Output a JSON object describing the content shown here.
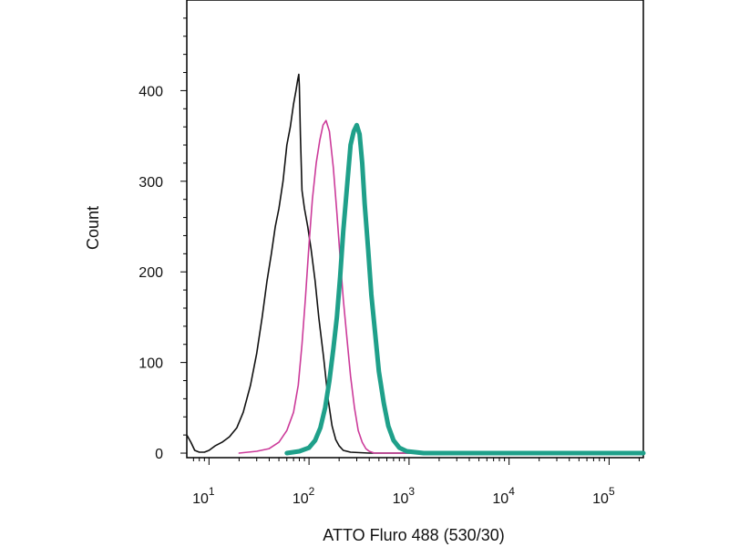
{
  "chart_data": {
    "type": "line",
    "xlabel": "ATTO Fluro 488 (530/30)",
    "ylabel": "Count",
    "x_scale": "log",
    "xlim": [
      6,
      220000
    ],
    "ylim": [
      -5,
      500
    ],
    "y_ticks": [
      0,
      100,
      200,
      300,
      400
    ],
    "y_tick_labels": [
      "0",
      "100",
      "200",
      "300",
      "400"
    ],
    "x_ticks": [
      {
        "value": 10,
        "base": "10",
        "exp": "1"
      },
      {
        "value": 100,
        "base": "10",
        "exp": "2"
      },
      {
        "value": 1000,
        "base": "10",
        "exp": "3"
      },
      {
        "value": 10000,
        "base": "10",
        "exp": "4"
      },
      {
        "value": 100000,
        "base": "10",
        "exp": "5"
      }
    ],
    "grid": false,
    "series": [
      {
        "color": "#111111",
        "x": [
          6,
          6.6,
          7.2,
          8,
          9,
          10,
          11.5,
          13.5,
          16,
          19,
          22,
          26,
          30,
          34,
          38,
          42,
          46,
          50,
          55,
          60,
          65,
          70,
          74,
          77,
          79,
          80,
          82,
          85,
          90,
          97,
          105,
          115,
          125,
          140,
          155,
          170,
          185,
          200,
          220,
          260,
          400,
          1000,
          220000
        ],
        "y": [
          20,
          12,
          3,
          1,
          1,
          3,
          8,
          12,
          18,
          28,
          45,
          75,
          110,
          150,
          190,
          220,
          250,
          270,
          300,
          340,
          360,
          385,
          400,
          412,
          418,
          405,
          350,
          290,
          270,
          250,
          225,
          190,
          150,
          105,
          60,
          30,
          15,
          8,
          3,
          1,
          0,
          0,
          0
        ]
      },
      {
        "color": "#cc3b9a",
        "x": [
          20,
          30,
          40,
          50,
          60,
          70,
          78,
          85,
          92,
          100,
          108,
          118,
          128,
          138,
          148,
          160,
          175,
          190,
          205,
          220,
          240,
          260,
          285,
          310,
          340,
          370,
          400,
          450,
          1000,
          220000
        ],
        "y": [
          0,
          2,
          5,
          12,
          25,
          45,
          75,
          120,
          170,
          230,
          280,
          320,
          345,
          362,
          367,
          355,
          315,
          265,
          215,
          170,
          125,
          85,
          50,
          25,
          12,
          5,
          2,
          0,
          0,
          0
        ]
      },
      {
        "color": "#1fa08a",
        "x": [
          60,
          80,
          100,
          115,
          130,
          145,
          160,
          175,
          190,
          205,
          220,
          240,
          260,
          280,
          300,
          320,
          340,
          360,
          390,
          420,
          460,
          500,
          560,
          620,
          700,
          800,
          950,
          1150,
          1400,
          2000,
          220000
        ],
        "y": [
          0,
          2,
          6,
          14,
          28,
          50,
          80,
          115,
          150,
          195,
          245,
          295,
          340,
          355,
          362,
          352,
          320,
          275,
          225,
          175,
          130,
          90,
          55,
          30,
          14,
          6,
          2,
          1,
          0,
          0,
          0
        ]
      }
    ]
  }
}
